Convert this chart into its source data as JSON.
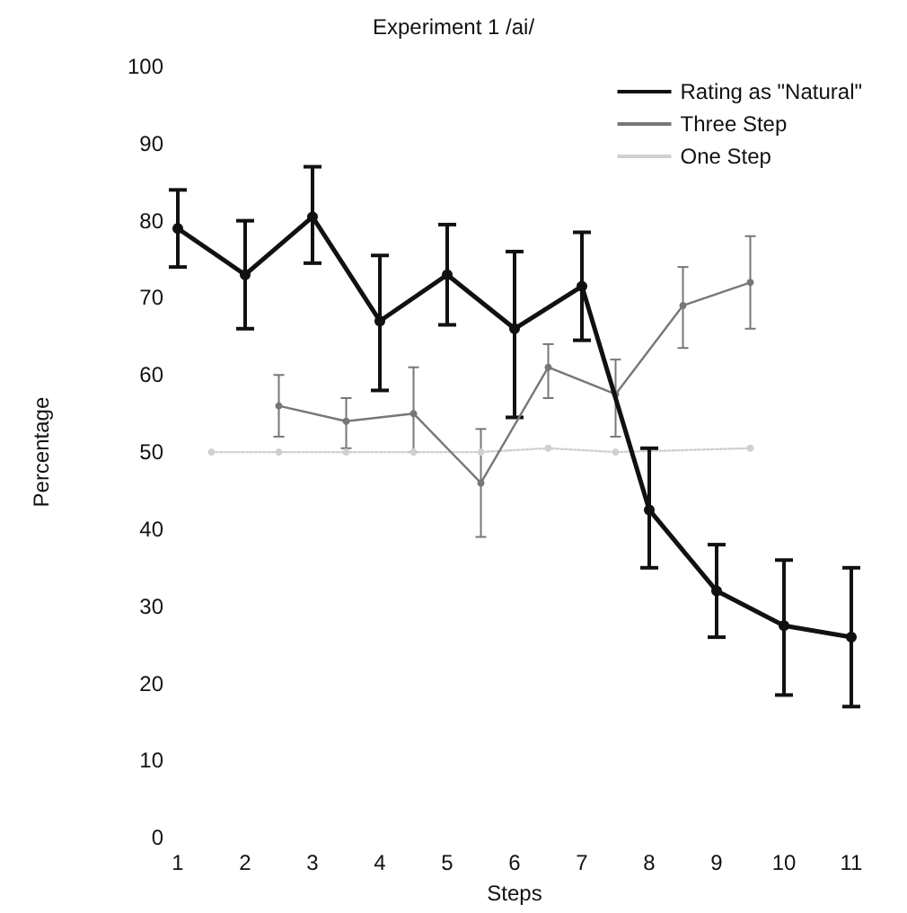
{
  "chart_data": {
    "type": "line",
    "title": "Experiment 1 /ai/",
    "xlabel": "Steps",
    "ylabel": "Percentage",
    "xlim": [
      1,
      11
    ],
    "xticks": [
      1,
      2,
      3,
      4,
      5,
      6,
      7,
      8,
      9,
      10,
      11
    ],
    "ylim": [
      0,
      100
    ],
    "yticks": [
      0,
      10,
      20,
      30,
      40,
      50,
      60,
      70,
      80,
      90,
      100
    ],
    "grid": false,
    "legend": "top right",
    "marker": "circle",
    "series": [
      {
        "name": "Rating as \"Natural\"",
        "color": "#111111",
        "line_style": "solid",
        "x": [
          1,
          2,
          3,
          4,
          5,
          6,
          7,
          8,
          9,
          10,
          11
        ],
        "values": [
          79,
          73,
          80.5,
          67,
          73,
          66,
          71.5,
          42.5,
          32,
          27.5,
          26
        ],
        "errors": [
          [
            74,
            84
          ],
          [
            66,
            80
          ],
          [
            74.5,
            87
          ],
          [
            58,
            75.5
          ],
          [
            66.5,
            79.5
          ],
          [
            54.5,
            76
          ],
          [
            64.5,
            78.5
          ],
          [
            35,
            50.5
          ],
          [
            26,
            38
          ],
          [
            18.5,
            36
          ],
          [
            17,
            35
          ]
        ]
      },
      {
        "name": "Three Step",
        "color": "#777777",
        "line_style": "solid",
        "x": [
          2.5,
          3.5,
          4.5,
          5.5,
          6.5,
          7.5,
          8.5,
          9.5
        ],
        "values": [
          56,
          54,
          55,
          46,
          61,
          57.5,
          69,
          72
        ],
        "errors": [
          [
            52,
            60
          ],
          [
            50.5,
            57
          ],
          [
            50,
            61
          ],
          [
            39,
            53
          ],
          [
            57,
            64
          ],
          [
            52,
            62
          ],
          [
            63.5,
            74
          ],
          [
            66,
            78
          ]
        ]
      },
      {
        "name": "One Step",
        "color": "#d0d0d0",
        "line_style": "dotted",
        "x": [
          1.5,
          2.5,
          3.5,
          4.5,
          5.5,
          6.5,
          7.5,
          9.5
        ],
        "values": [
          50,
          50,
          50,
          50,
          50,
          50.5,
          50,
          50.5
        ]
      }
    ]
  }
}
